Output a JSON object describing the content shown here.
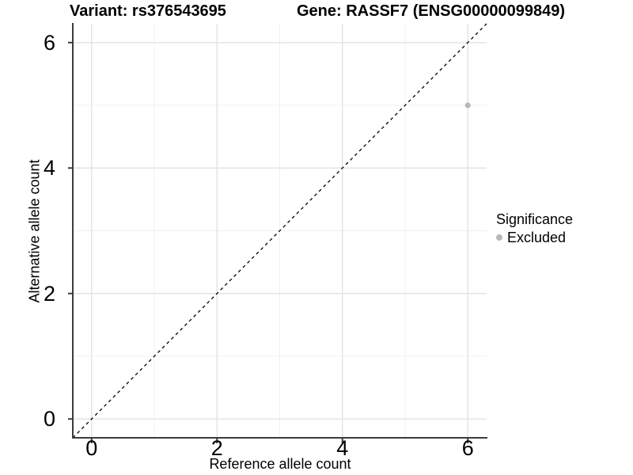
{
  "header": {
    "variant_title": "Variant: rs376543695",
    "gene_title": "Gene: RASSF7 (ENSG00000099849)"
  },
  "chart_data": {
    "type": "scatter",
    "xlabel": "Reference allele count",
    "ylabel": "Alternative allele count",
    "xlim": [
      -0.3,
      6.3
    ],
    "ylim": [
      -0.3,
      6.3
    ],
    "x_ticks": [
      0,
      2,
      4,
      6
    ],
    "y_ticks": [
      0,
      2,
      4,
      6
    ],
    "x_minor_gridlines": [
      1,
      3,
      5
    ],
    "y_minor_gridlines": [
      1,
      3,
      5
    ],
    "grid": true,
    "points": [
      {
        "x": 6,
        "y": 5,
        "series": "Excluded"
      }
    ],
    "reference_line": {
      "type": "identity",
      "style": "dashed",
      "from": [
        -0.3,
        -0.3
      ],
      "to": [
        6.3,
        6.3
      ],
      "color": "#000000"
    },
    "legend": {
      "title": "Significance",
      "position": "right",
      "items": [
        {
          "label": "Excluded",
          "color": "#b8b8b8"
        }
      ]
    },
    "colors": {
      "point": "#b8b8b8",
      "grid_major": "#e3e3e3",
      "grid_minor": "#f0f0f0",
      "axis_line": "#3c3c3c",
      "panel_background": "#ffffff"
    }
  }
}
